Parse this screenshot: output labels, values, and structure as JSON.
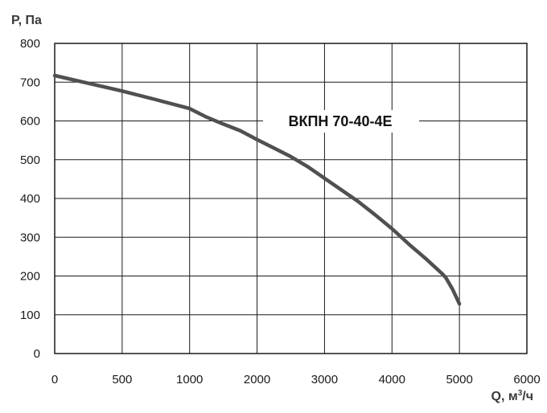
{
  "chart_data": {
    "type": "line",
    "title": "",
    "xlabel": "Q, м³/ч",
    "xlabel_main": "Q, м",
    "xlabel_sup": "3",
    "xlabel_tail": "/ч",
    "ylabel": "P, Па",
    "xlim": [
      0,
      6000
    ],
    "ylim": [
      0,
      800
    ],
    "xticks": [
      "0",
      "500",
      "1000",
      "2000",
      "3000",
      "4000",
      "5000",
      "6000"
    ],
    "yticks": [
      "0",
      "100",
      "200",
      "300",
      "400",
      "500",
      "600",
      "700",
      "800"
    ],
    "grid": true,
    "colors": {
      "line": "#505050",
      "grid": "#1a1a1a",
      "text": "#1a1a1a"
    },
    "series": [
      {
        "name": "ВКПН 70-40-4Е",
        "x": [
          0,
          250,
          500,
          750,
          1000,
          1250,
          1500,
          1750,
          2000,
          2250,
          2500,
          2750,
          3000,
          3250,
          3500,
          3750,
          4000,
          4250,
          4500,
          4750,
          4800,
          4900,
          5000
        ],
        "y": [
          717,
          697,
          677,
          655,
          632,
          610,
          592,
          575,
          552,
          530,
          508,
          482,
          452,
          422,
          392,
          358,
          322,
          282,
          245,
          205,
          195,
          165,
          128
        ]
      }
    ]
  }
}
